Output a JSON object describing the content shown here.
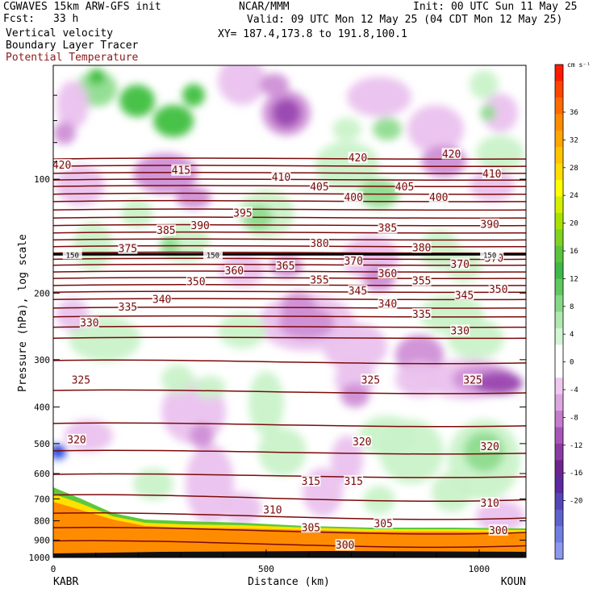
{
  "header": {
    "title_left": "CGWAVES 15km ARW-GFS init",
    "fcst_label": "Fcst:",
    "fcst_value": "33 h",
    "field1": "Vertical velocity",
    "field2": "Boundary Layer Tracer",
    "field3": "Potential Temperature",
    "center": "NCAR/MMM",
    "init": "Init: 00 UTC Sun 11 May 25",
    "valid": "Valid: 09 UTC Mon 12 May 25 (04 CDT Mon 12 May 25)",
    "xy": "XY= 187.4,173.8 to 191.8,100.1"
  },
  "chart_data": {
    "type": "heatmap",
    "xlabel": "Distance (km)",
    "ylabel": "Pressure (hPa), log scale",
    "x_ticks": [
      "0",
      "500",
      "1000"
    ],
    "xlim": [
      0,
      1110
    ],
    "y_ticks": [
      "100",
      "200",
      "300",
      "400",
      "500",
      "600",
      "700",
      "800",
      "900",
      "1000"
    ],
    "ylim_hpa": [
      1000,
      50
    ],
    "endpoints": {
      "left": "KABR",
      "right": "KOUN"
    },
    "colorbar": {
      "unit": "cm s⁻¹",
      "labels": [
        "36",
        "32",
        "28",
        "24",
        "20",
        "16",
        "12",
        "8",
        "4",
        "0",
        "-4",
        "-8",
        "-12",
        "-16",
        "-20"
      ],
      "colors": [
        "#ff1a00",
        "#ff4400",
        "#ff6a00",
        "#ff8c00",
        "#ffa500",
        "#ffc400",
        "#ffdd00",
        "#ffff00",
        "#d4f000",
        "#a8e200",
        "#7ed321",
        "#5cc43a",
        "#3fb84a",
        "#5fc95f",
        "#86d886",
        "#b0e8b0",
        "#d2f5d2",
        "#ffffff",
        "#ffffff",
        "#efc8ef",
        "#dca6e0",
        "#c47ccc",
        "#a855b8",
        "#8a3aa3",
        "#6c2590",
        "#5a2aa0",
        "#5545b8",
        "#5e62cc",
        "#707ee0",
        "#8c98f0"
      ]
    },
    "theta_labels": [
      {
        "text": "420",
        "x": 20,
        "p": 92
      },
      {
        "text": "415",
        "x": 300,
        "p": 95
      },
      {
        "text": "410",
        "x": 535,
        "p": 99
      },
      {
        "text": "405",
        "x": 625,
        "p": 105
      },
      {
        "text": "420",
        "x": 715,
        "p": 88
      },
      {
        "text": "405",
        "x": 825,
        "p": 105
      },
      {
        "text": "420",
        "x": 935,
        "p": 86
      },
      {
        "text": "410",
        "x": 1030,
        "p": 97
      },
      {
        "text": "400",
        "x": 705,
        "p": 112
      },
      {
        "text": "400",
        "x": 905,
        "p": 112
      },
      {
        "text": "395",
        "x": 445,
        "p": 123
      },
      {
        "text": "390",
        "x": 345,
        "p": 133
      },
      {
        "text": "390",
        "x": 1025,
        "p": 132
      },
      {
        "text": "385",
        "x": 265,
        "p": 137
      },
      {
        "text": "385",
        "x": 785,
        "p": 135
      },
      {
        "text": "380",
        "x": 625,
        "p": 148
      },
      {
        "text": "380",
        "x": 865,
        "p": 152
      },
      {
        "text": "375",
        "x": 175,
        "p": 153
      },
      {
        "text": "370",
        "x": 705,
        "p": 165
      },
      {
        "text": "370",
        "x": 955,
        "p": 168
      },
      {
        "text": "370",
        "x": 1035,
        "p": 162
      },
      {
        "text": "365",
        "x": 545,
        "p": 170
      },
      {
        "text": "360",
        "x": 425,
        "p": 175
      },
      {
        "text": "360",
        "x": 785,
        "p": 178
      },
      {
        "text": "355",
        "x": 625,
        "p": 185
      },
      {
        "text": "355",
        "x": 865,
        "p": 186
      },
      {
        "text": "350",
        "x": 335,
        "p": 187
      },
      {
        "text": "350",
        "x": 1045,
        "p": 196
      },
      {
        "text": "345",
        "x": 715,
        "p": 198
      },
      {
        "text": "345",
        "x": 965,
        "p": 203
      },
      {
        "text": "340",
        "x": 255,
        "p": 208
      },
      {
        "text": "340",
        "x": 785,
        "p": 214
      },
      {
        "text": "335",
        "x": 175,
        "p": 218
      },
      {
        "text": "335",
        "x": 865,
        "p": 228
      },
      {
        "text": "330",
        "x": 85,
        "p": 240
      },
      {
        "text": "330",
        "x": 955,
        "p": 252
      },
      {
        "text": "325",
        "x": 65,
        "p": 340
      },
      {
        "text": "325",
        "x": 745,
        "p": 340
      },
      {
        "text": "325",
        "x": 985,
        "p": 340
      },
      {
        "text": "320",
        "x": 55,
        "p": 490
      },
      {
        "text": "320",
        "x": 725,
        "p": 495
      },
      {
        "text": "320",
        "x": 1025,
        "p": 510
      },
      {
        "text": "315",
        "x": 605,
        "p": 630
      },
      {
        "text": "315",
        "x": 705,
        "p": 630
      },
      {
        "text": "310",
        "x": 515,
        "p": 750
      },
      {
        "text": "310",
        "x": 1025,
        "p": 720
      },
      {
        "text": "305",
        "x": 605,
        "p": 835
      },
      {
        "text": "305",
        "x": 775,
        "p": 815
      },
      {
        "text": "300",
        "x": 685,
        "p": 930
      },
      {
        "text": "300",
        "x": 1045,
        "p": 850
      }
    ],
    "pv_labels": [
      {
        "text": "150",
        "x": 45,
        "p": 158
      },
      {
        "text": "150",
        "x": 375,
        "p": 158
      },
      {
        "text": "150",
        "x": 1025,
        "p": 158
      }
    ]
  }
}
